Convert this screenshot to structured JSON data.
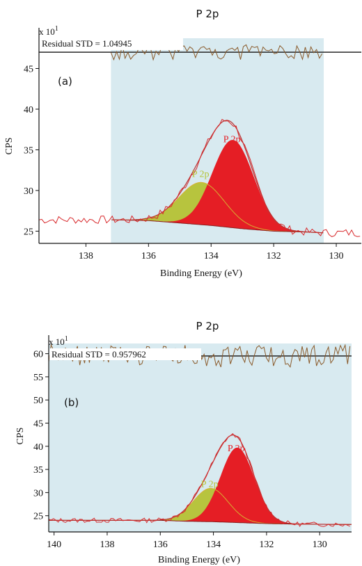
{
  "chart_data": [
    {
      "type": "line",
      "panel_label": "(a)",
      "title": "P 2p",
      "xlabel": "Binding Energy (eV)",
      "ylabel": "CPS",
      "multiplier": "x 10",
      "multiplier_exp": "1",
      "residual_label": "Residual STD = 1.04945",
      "xlim": [
        139.5,
        129.2
      ],
      "ylim": [
        23.5,
        50
      ],
      "x_ticks": [
        "138",
        "136",
        "134",
        "132",
        "130"
      ],
      "y_ticks": [
        "25",
        "30",
        "35",
        "40",
        "45"
      ],
      "region": [
        137.2,
        130.4
      ],
      "background": {
        "x": [
          137.2,
          136,
          135,
          134,
          133,
          132,
          131,
          130.4
        ],
        "y": [
          26.4,
          26.3,
          26.0,
          25.7,
          25.3,
          25.0,
          24.9,
          24.8
        ]
      },
      "components": [
        {
          "name": "P 2p",
          "center": 134.3,
          "height_above_bg": 5.2,
          "fwhm": 1.7,
          "fill": "#b5c234",
          "line": "#d8b032"
        },
        {
          "name": "P 2p",
          "center": 133.3,
          "height_above_bg": 10.8,
          "fwhm": 1.55,
          "fill": "#e51e25",
          "line": "#e51e25"
        }
      ],
      "residual_level": 47,
      "noise_seed": 7
    },
    {
      "type": "line",
      "panel_label": "(b)",
      "title": "P 2p",
      "xlabel": "Binding Energy (eV)",
      "ylabel": "CPS",
      "multiplier": "x 10",
      "multiplier_exp": "1",
      "residual_label": "Residual STD = 0.957962",
      "xlim": [
        140.2,
        128.8
      ],
      "ylim": [
        21.5,
        64
      ],
      "x_ticks": [
        "140",
        "138",
        "136",
        "134",
        "132",
        "130"
      ],
      "y_ticks": [
        "25",
        "30",
        "35",
        "40",
        "45",
        "50",
        "55",
        "60"
      ],
      "region": [
        140.2,
        128.8
      ],
      "background": {
        "x": [
          140.2,
          137,
          136,
          135,
          134,
          133,
          132,
          131,
          128.8
        ],
        "y": [
          24.0,
          24.0,
          24.0,
          23.8,
          23.7,
          23.5,
          23.3,
          23.2,
          23.1
        ]
      },
      "components": [
        {
          "name": "P 2p",
          "center": 134.1,
          "height_above_bg": 7.2,
          "fwhm": 1.55,
          "fill": "#b5c234",
          "line": "#d8b032"
        },
        {
          "name": "P 2p",
          "center": 133.1,
          "height_above_bg": 16.2,
          "fwhm": 1.5,
          "fill": "#e51e25",
          "line": "#e51e25"
        }
      ],
      "residual_level": 59.5,
      "noise_seed": 13
    }
  ]
}
